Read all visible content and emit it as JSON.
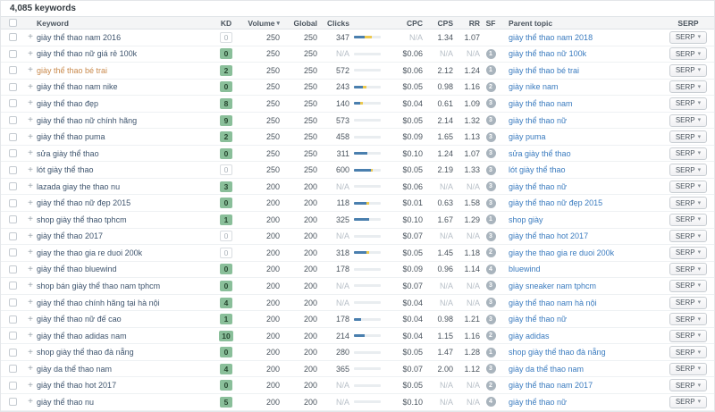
{
  "toolbar": {
    "keyword_count": "4,085 keywords"
  },
  "icons": {
    "sort_desc": "▾",
    "caret_down": "▾",
    "expand_plus": "+"
  },
  "colors": {
    "kd_green": "#8abf9a",
    "bar_blue": "#4a7fae",
    "bar_yellow": "#ecc94f",
    "keyword_link": "#3f556e",
    "keyword_visited": "#c98a4d",
    "parent_link": "#3a7bbf"
  },
  "table": {
    "columns": {
      "keyword": "Keyword",
      "kd": "KD",
      "volume": "Volume",
      "global": "Global",
      "clicks": "Clicks",
      "cpc": "CPC",
      "cps": "CPS",
      "rr": "RR",
      "sf": "SF",
      "parent": "Parent topic",
      "serp": "SERP"
    },
    "serp_button_label": "SERP",
    "rows": [
      {
        "keyword": "giày thể thao nam 2016",
        "visited": false,
        "kd": "0",
        "kd_variant": "plain",
        "volume": "250",
        "global": "250",
        "clicks": "347",
        "bar": {
          "blue": 40,
          "yellow": 28
        },
        "cpc": "N/A",
        "cps": "1.34",
        "rr": "1.07",
        "sf": null,
        "parent": "giày thể thao nam 2018"
      },
      {
        "keyword": "giày thể thao nữ giá rẻ 100k",
        "visited": false,
        "kd": "0",
        "kd_variant": "green",
        "volume": "250",
        "global": "250",
        "clicks": "N/A",
        "bar": {
          "blue": 0,
          "yellow": 0
        },
        "cpc": "$0.06",
        "cps": "N/A",
        "rr": "N/A",
        "sf": "1",
        "parent": "giày thể thao nữ 100k"
      },
      {
        "keyword": "giày thể thao bé trai",
        "visited": true,
        "kd": "2",
        "kd_variant": "green",
        "volume": "250",
        "global": "250",
        "clicks": "572",
        "bar": {
          "blue": 0,
          "yellow": 0
        },
        "cpc": "$0.06",
        "cps": "2.12",
        "rr": "1.24",
        "sf": "1",
        "parent": "giày thể thao bé trai"
      },
      {
        "keyword": "giày thể thao nam nike",
        "visited": false,
        "kd": "0",
        "kd_variant": "green",
        "volume": "250",
        "global": "250",
        "clicks": "243",
        "bar": {
          "blue": 32,
          "yellow": 14
        },
        "cpc": "$0.05",
        "cps": "0.98",
        "rr": "1.16",
        "sf": "2",
        "parent": "giày nike nam"
      },
      {
        "keyword": "giày thể thao đẹp",
        "visited": false,
        "kd": "8",
        "kd_variant": "green",
        "volume": "250",
        "global": "250",
        "clicks": "140",
        "bar": {
          "blue": 22,
          "yellow": 12
        },
        "cpc": "$0.04",
        "cps": "0.61",
        "rr": "1.09",
        "sf": "3",
        "parent": "giày thể thao nam"
      },
      {
        "keyword": "giày thể thao nữ chính hãng",
        "visited": false,
        "kd": "9",
        "kd_variant": "green",
        "volume": "250",
        "global": "250",
        "clicks": "573",
        "bar": {
          "blue": 0,
          "yellow": 0
        },
        "cpc": "$0.05",
        "cps": "2.14",
        "rr": "1.32",
        "sf": "3",
        "parent": "giày thể thao nữ"
      },
      {
        "keyword": "giày thể thao puma",
        "visited": false,
        "kd": "2",
        "kd_variant": "green",
        "volume": "250",
        "global": "250",
        "clicks": "458",
        "bar": {
          "blue": 0,
          "yellow": 0
        },
        "cpc": "$0.09",
        "cps": "1.65",
        "rr": "1.13",
        "sf": "3",
        "parent": "giày puma"
      },
      {
        "keyword": "sửa giày thể thao",
        "visited": false,
        "kd": "0",
        "kd_variant": "green",
        "volume": "250",
        "global": "250",
        "clicks": "311",
        "bar": {
          "blue": 50,
          "yellow": 0
        },
        "cpc": "$0.10",
        "cps": "1.24",
        "rr": "1.07",
        "sf": "3",
        "parent": "sửa giày thể thao"
      },
      {
        "keyword": "lót giày thể thao",
        "visited": false,
        "kd": "0",
        "kd_variant": "plain",
        "volume": "250",
        "global": "250",
        "clicks": "600",
        "bar": {
          "blue": 62,
          "yellow": 8
        },
        "cpc": "$0.05",
        "cps": "2.19",
        "rr": "1.33",
        "sf": "3",
        "parent": "lót giày thể thao"
      },
      {
        "keyword": "lazada giay the thao nu",
        "visited": false,
        "kd": "3",
        "kd_variant": "green",
        "volume": "200",
        "global": "200",
        "clicks": "N/A",
        "bar": {
          "blue": 0,
          "yellow": 0
        },
        "cpc": "$0.06",
        "cps": "N/A",
        "rr": "N/A",
        "sf": "3",
        "parent": "giày thể thao nữ"
      },
      {
        "keyword": "giày thể thao nữ đẹp 2015",
        "visited": false,
        "kd": "0",
        "kd_variant": "green",
        "volume": "200",
        "global": "200",
        "clicks": "118",
        "bar": {
          "blue": 45,
          "yellow": 10
        },
        "cpc": "$0.01",
        "cps": "0.63",
        "rr": "1.58",
        "sf": "3",
        "parent": "giày thể thao nữ đẹp 2015"
      },
      {
        "keyword": "shop giày thể thao tphcm",
        "visited": false,
        "kd": "1",
        "kd_variant": "green",
        "volume": "200",
        "global": "200",
        "clicks": "325",
        "bar": {
          "blue": 55,
          "yellow": 0
        },
        "cpc": "$0.10",
        "cps": "1.67",
        "rr": "1.29",
        "sf": "1",
        "parent": "shop giày"
      },
      {
        "keyword": "giày thể thao 2017",
        "visited": false,
        "kd": "0",
        "kd_variant": "plain",
        "volume": "200",
        "global": "200",
        "clicks": "N/A",
        "bar": {
          "blue": 0,
          "yellow": 0
        },
        "cpc": "$0.07",
        "cps": "N/A",
        "rr": "N/A",
        "sf": "3",
        "parent": "giày thể thao hot 2017"
      },
      {
        "keyword": "giay the thao gia re duoi 200k",
        "visited": false,
        "kd": "0",
        "kd_variant": "plain",
        "volume": "200",
        "global": "200",
        "clicks": "318",
        "bar": {
          "blue": 48,
          "yellow": 10
        },
        "cpc": "$0.05",
        "cps": "1.45",
        "rr": "1.18",
        "sf": "2",
        "parent": "giay the thao gia re duoi 200k"
      },
      {
        "keyword": "giày thể thao bluewind",
        "visited": false,
        "kd": "0",
        "kd_variant": "green",
        "volume": "200",
        "global": "200",
        "clicks": "178",
        "bar": {
          "blue": 0,
          "yellow": 0
        },
        "cpc": "$0.09",
        "cps": "0.96",
        "rr": "1.14",
        "sf": "4",
        "parent": "bluewind"
      },
      {
        "keyword": "shop bán giày thể thao nam tphcm",
        "visited": false,
        "kd": "0",
        "kd_variant": "green",
        "volume": "200",
        "global": "200",
        "clicks": "N/A",
        "bar": {
          "blue": 0,
          "yellow": 0
        },
        "cpc": "$0.07",
        "cps": "N/A",
        "rr": "N/A",
        "sf": "3",
        "parent": "giày sneaker nam tphcm"
      },
      {
        "keyword": "giày thể thao chính hãng tại hà nội",
        "visited": false,
        "kd": "4",
        "kd_variant": "green",
        "volume": "200",
        "global": "200",
        "clicks": "N/A",
        "bar": {
          "blue": 0,
          "yellow": 0
        },
        "cpc": "$0.04",
        "cps": "N/A",
        "rr": "N/A",
        "sf": "3",
        "parent": "giày thể thao nam hà nội"
      },
      {
        "keyword": "giày thể thao nữ đế cao",
        "visited": false,
        "kd": "1",
        "kd_variant": "green",
        "volume": "200",
        "global": "200",
        "clicks": "178",
        "bar": {
          "blue": 28,
          "yellow": 0
        },
        "cpc": "$0.04",
        "cps": "0.98",
        "rr": "1.21",
        "sf": "3",
        "parent": "giày thể thao nữ"
      },
      {
        "keyword": "giày thể thao adidas nam",
        "visited": false,
        "kd": "10",
        "kd_variant": "green",
        "volume": "200",
        "global": "200",
        "clicks": "214",
        "bar": {
          "blue": 40,
          "yellow": 0
        },
        "cpc": "$0.04",
        "cps": "1.15",
        "rr": "1.16",
        "sf": "2",
        "parent": "giày adidas"
      },
      {
        "keyword": "shop giày thể thao đà nẵng",
        "visited": false,
        "kd": "0",
        "kd_variant": "green",
        "volume": "200",
        "global": "200",
        "clicks": "280",
        "bar": {
          "blue": 0,
          "yellow": 0
        },
        "cpc": "$0.05",
        "cps": "1.47",
        "rr": "1.28",
        "sf": "1",
        "parent": "shop giày thể thao đà nẵng"
      },
      {
        "keyword": "giày da thể thao nam",
        "visited": false,
        "kd": "4",
        "kd_variant": "green",
        "volume": "200",
        "global": "200",
        "clicks": "365",
        "bar": {
          "blue": 0,
          "yellow": 0
        },
        "cpc": "$0.07",
        "cps": "2.00",
        "rr": "1.12",
        "sf": "3",
        "parent": "giày da thể thao nam"
      },
      {
        "keyword": "giày thể thao hot 2017",
        "visited": false,
        "kd": "0",
        "kd_variant": "green",
        "volume": "200",
        "global": "200",
        "clicks": "N/A",
        "bar": {
          "blue": 0,
          "yellow": 0
        },
        "cpc": "$0.05",
        "cps": "N/A",
        "rr": "N/A",
        "sf": "2",
        "parent": "giày thể thao nam 2017"
      },
      {
        "keyword": "giày thể thao nu",
        "visited": false,
        "kd": "5",
        "kd_variant": "green",
        "volume": "200",
        "global": "200",
        "clicks": "N/A",
        "bar": {
          "blue": 0,
          "yellow": 0
        },
        "cpc": "$0.10",
        "cps": "N/A",
        "rr": "N/A",
        "sf": "4",
        "parent": "giày thể thao nữ"
      }
    ]
  }
}
